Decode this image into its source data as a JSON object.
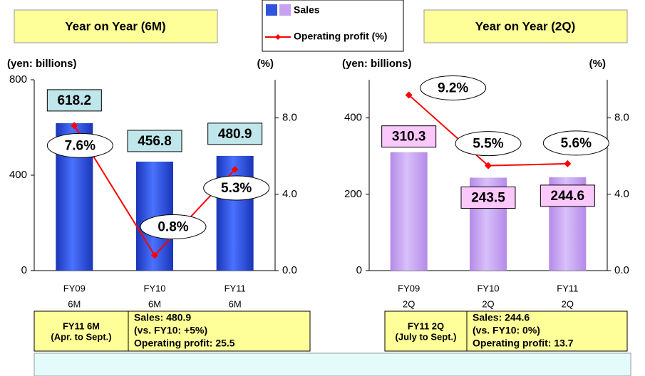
{
  "chart_data": [
    {
      "type": "bar_line",
      "title": "Year on Year (6M)",
      "ylabel": "(yen: billions)",
      "y2label": "(%)",
      "categories": [
        [
          "FY09",
          "6M"
        ],
        [
          "FY10",
          "6M"
        ],
        [
          "FY11",
          "6M"
        ]
      ],
      "series": [
        {
          "name": "Sales",
          "color": "#2f55dc",
          "values": [
            618.2,
            456.8,
            480.9
          ]
        },
        {
          "name": "Operating profit (%)",
          "color": "#ff0000",
          "axis": "y2",
          "values": [
            7.6,
            0.8,
            5.3
          ],
          "value_labels": [
            "7.6%",
            "0.8%",
            "5.3%"
          ]
        }
      ],
      "ylim": [
        0,
        800
      ],
      "yticks": [
        0,
        400,
        800
      ],
      "y2lim": [
        0,
        10
      ],
      "y2ticks": [
        {
          "value": 0,
          "label": "0.0"
        },
        {
          "value": 4,
          "label": "4.0"
        },
        {
          "value": 8,
          "label": "8.0"
        }
      ]
    },
    {
      "type": "bar_line",
      "title": "Year on Year (2Q)",
      "ylabel": "(yen: billions)",
      "y2label": "(%)",
      "categories": [
        [
          "FY09",
          "2Q"
        ],
        [
          "FY10",
          "2Q"
        ],
        [
          "FY11",
          "2Q"
        ]
      ],
      "series": [
        {
          "color": "#c7a2f2",
          "values": [
            310.3,
            243.5,
            244.6
          ]
        },
        {
          "color": "#ff0000",
          "axis": "y2",
          "values": [
            9.2,
            5.5,
            5.6
          ],
          "value_labels": [
            "9.2%",
            "5.5%",
            "5.6%"
          ]
        }
      ],
      "ylim": [
        0,
        500
      ],
      "yticks": [
        0,
        200,
        400
      ],
      "y2lim": [
        0,
        10
      ],
      "y2ticks": [
        {
          "value": 0,
          "label": "0.0"
        },
        {
          "value": 4,
          "label": "4.0"
        },
        {
          "value": 8,
          "label": "8.0"
        }
      ]
    }
  ],
  "summary_boxes": [
    {
      "heading": [
        "FY11 6M",
        "(Apr. to Sept.)"
      ],
      "lines": [
        "Sales: 480.9",
        "(vs. FY10: +5%)",
        "Operating profit: 25.5"
      ]
    },
    {
      "heading": [
        "FY11 2Q",
        "(July to Sept.)"
      ],
      "lines": [
        "Sales: 244.6",
        "(vs. FY10: 0%)",
        "Operating profit: 13.7"
      ]
    }
  ]
}
